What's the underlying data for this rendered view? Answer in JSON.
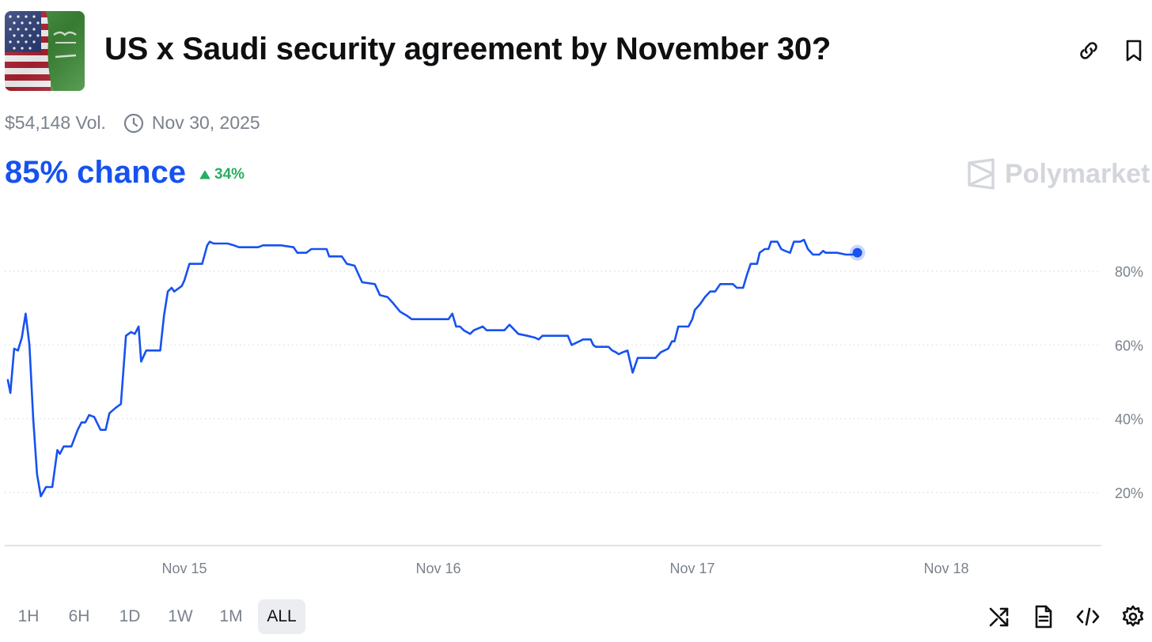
{
  "header": {
    "title": "US x Saudi security agreement by November 30?",
    "thumbnail_icon": "us-saudi-flags-image",
    "actions": [
      {
        "icon": "link-icon"
      },
      {
        "icon": "bookmark-icon"
      }
    ]
  },
  "meta": {
    "volume": "$54,148 Vol.",
    "end_date_icon": "clock-icon",
    "end_date": "Nov 30, 2025"
  },
  "summary": {
    "chance": "85% chance",
    "change": "34%",
    "change_icon": "triangle-up-icon",
    "change_color": "#27ae60",
    "accent_color": "#1652f0"
  },
  "watermark": {
    "logo_icon": "polymarket-logo-icon",
    "text": "Polymarket"
  },
  "time_ranges": {
    "options": [
      "1H",
      "6H",
      "1D",
      "1W",
      "1M",
      "ALL"
    ],
    "selected": "ALL"
  },
  "toolbar": [
    {
      "icon": "shuffle-icon"
    },
    {
      "icon": "document-icon"
    },
    {
      "icon": "code-icon"
    },
    {
      "icon": "settings-gear-icon"
    }
  ],
  "chart_data": {
    "type": "line",
    "x_unit": "days since Nov 15 (fractional)",
    "xticks": [
      {
        "value": 0,
        "label": "Nov 15"
      },
      {
        "value": 1,
        "label": "Nov 16"
      },
      {
        "value": 2,
        "label": "Nov 17"
      },
      {
        "value": 3,
        "label": "Nov 18"
      }
    ],
    "yticks": [
      {
        "value": 20,
        "label": "20%"
      },
      {
        "value": 40,
        "label": "40%"
      },
      {
        "value": 60,
        "label": "60%"
      },
      {
        "value": 80,
        "label": "80%"
      }
    ],
    "xlim": [
      -0.7,
      3.6
    ],
    "ylim": [
      6,
      96
    ],
    "grid": "horizontal dotted",
    "line_color": "#1652f0",
    "series": [
      {
        "values": [
          [
            -0.695,
            50.5
          ],
          [
            -0.685,
            47
          ],
          [
            -0.67,
            59
          ],
          [
            -0.655,
            58.5
          ],
          [
            -0.64,
            62
          ],
          [
            -0.625,
            68.5
          ],
          [
            -0.61,
            60
          ],
          [
            -0.595,
            40
          ],
          [
            -0.58,
            25
          ],
          [
            -0.565,
            19
          ],
          [
            -0.545,
            21.5
          ],
          [
            -0.52,
            21.5
          ],
          [
            -0.5,
            31.5
          ],
          [
            -0.49,
            30.5
          ],
          [
            -0.475,
            32.5
          ],
          [
            -0.445,
            32.5
          ],
          [
            -0.42,
            37
          ],
          [
            -0.405,
            39
          ],
          [
            -0.39,
            39
          ],
          [
            -0.375,
            41
          ],
          [
            -0.355,
            40.5
          ],
          [
            -0.33,
            37
          ],
          [
            -0.31,
            37
          ],
          [
            -0.295,
            41.5
          ],
          [
            -0.27,
            43
          ],
          [
            -0.25,
            44
          ],
          [
            -0.23,
            62.5
          ],
          [
            -0.21,
            63.5
          ],
          [
            -0.195,
            63
          ],
          [
            -0.18,
            65
          ],
          [
            -0.17,
            55.5
          ],
          [
            -0.15,
            58.5
          ],
          [
            -0.095,
            58.5
          ],
          [
            -0.08,
            68
          ],
          [
            -0.065,
            74.5
          ],
          [
            -0.05,
            75.5
          ],
          [
            -0.04,
            74.5
          ],
          [
            -0.01,
            76
          ],
          [
            0.0,
            77.5
          ],
          [
            0.02,
            82
          ],
          [
            0.07,
            82
          ],
          [
            0.09,
            87
          ],
          [
            0.1,
            88
          ],
          [
            0.115,
            87.5
          ],
          [
            0.17,
            87.5
          ],
          [
            0.195,
            87
          ],
          [
            0.215,
            86.5
          ],
          [
            0.29,
            86.5
          ],
          [
            0.31,
            87
          ],
          [
            0.38,
            87
          ],
          [
            0.43,
            86.5
          ],
          [
            0.445,
            85
          ],
          [
            0.48,
            85
          ],
          [
            0.5,
            86
          ],
          [
            0.56,
            86
          ],
          [
            0.57,
            84
          ],
          [
            0.62,
            84
          ],
          [
            0.64,
            82
          ],
          [
            0.67,
            81.5
          ],
          [
            0.7,
            77
          ],
          [
            0.75,
            76.5
          ],
          [
            0.77,
            73.5
          ],
          [
            0.8,
            73
          ],
          [
            0.82,
            71.5
          ],
          [
            0.85,
            69
          ],
          [
            0.875,
            68
          ],
          [
            0.895,
            67
          ],
          [
            1.04,
            67
          ],
          [
            1.055,
            68.5
          ],
          [
            1.07,
            65
          ],
          [
            1.085,
            65
          ],
          [
            1.1,
            64
          ],
          [
            1.125,
            63
          ],
          [
            1.14,
            64
          ],
          [
            1.175,
            65
          ],
          [
            1.19,
            64
          ],
          [
            1.26,
            64
          ],
          [
            1.28,
            65.5
          ],
          [
            1.315,
            63
          ],
          [
            1.35,
            62.5
          ],
          [
            1.38,
            62
          ],
          [
            1.395,
            61.5
          ],
          [
            1.41,
            62.5
          ],
          [
            1.51,
            62.5
          ],
          [
            1.525,
            60
          ],
          [
            1.555,
            61
          ],
          [
            1.57,
            61.5
          ],
          [
            1.6,
            61.5
          ],
          [
            1.61,
            60
          ],
          [
            1.62,
            59.5
          ],
          [
            1.67,
            59.5
          ],
          [
            1.685,
            58.5
          ],
          [
            1.7,
            58
          ],
          [
            1.71,
            57.5
          ],
          [
            1.725,
            58
          ],
          [
            1.745,
            58.5
          ],
          [
            1.765,
            52.5
          ],
          [
            1.785,
            56.5
          ],
          [
            1.855,
            56.5
          ],
          [
            1.875,
            58
          ],
          [
            1.905,
            59
          ],
          [
            1.92,
            61
          ],
          [
            1.93,
            61
          ],
          [
            1.945,
            65
          ],
          [
            1.985,
            65
          ],
          [
            2.0,
            67
          ],
          [
            2.01,
            69.5
          ],
          [
            2.03,
            71
          ],
          [
            2.05,
            73
          ],
          [
            2.07,
            74.5
          ],
          [
            2.09,
            74.5
          ],
          [
            2.11,
            76.5
          ],
          [
            2.16,
            76.5
          ],
          [
            2.175,
            75.5
          ],
          [
            2.2,
            75.5
          ],
          [
            2.215,
            79
          ],
          [
            2.23,
            82
          ],
          [
            2.255,
            82
          ],
          [
            2.265,
            85
          ],
          [
            2.285,
            86
          ],
          [
            2.3,
            86
          ],
          [
            2.31,
            88
          ],
          [
            2.335,
            88
          ],
          [
            2.35,
            86
          ],
          [
            2.365,
            85.5
          ],
          [
            2.385,
            85
          ],
          [
            2.4,
            88
          ],
          [
            2.425,
            88
          ],
          [
            2.44,
            88.5
          ],
          [
            2.455,
            86
          ],
          [
            2.475,
            84.5
          ],
          [
            2.5,
            84.5
          ],
          [
            2.515,
            85.5
          ],
          [
            2.525,
            85
          ],
          [
            2.545,
            85
          ],
          [
            2.57,
            85
          ],
          [
            2.605,
            84.5
          ],
          [
            2.64,
            84.5
          ],
          [
            2.65,
            85
          ]
        ]
      }
    ]
  }
}
